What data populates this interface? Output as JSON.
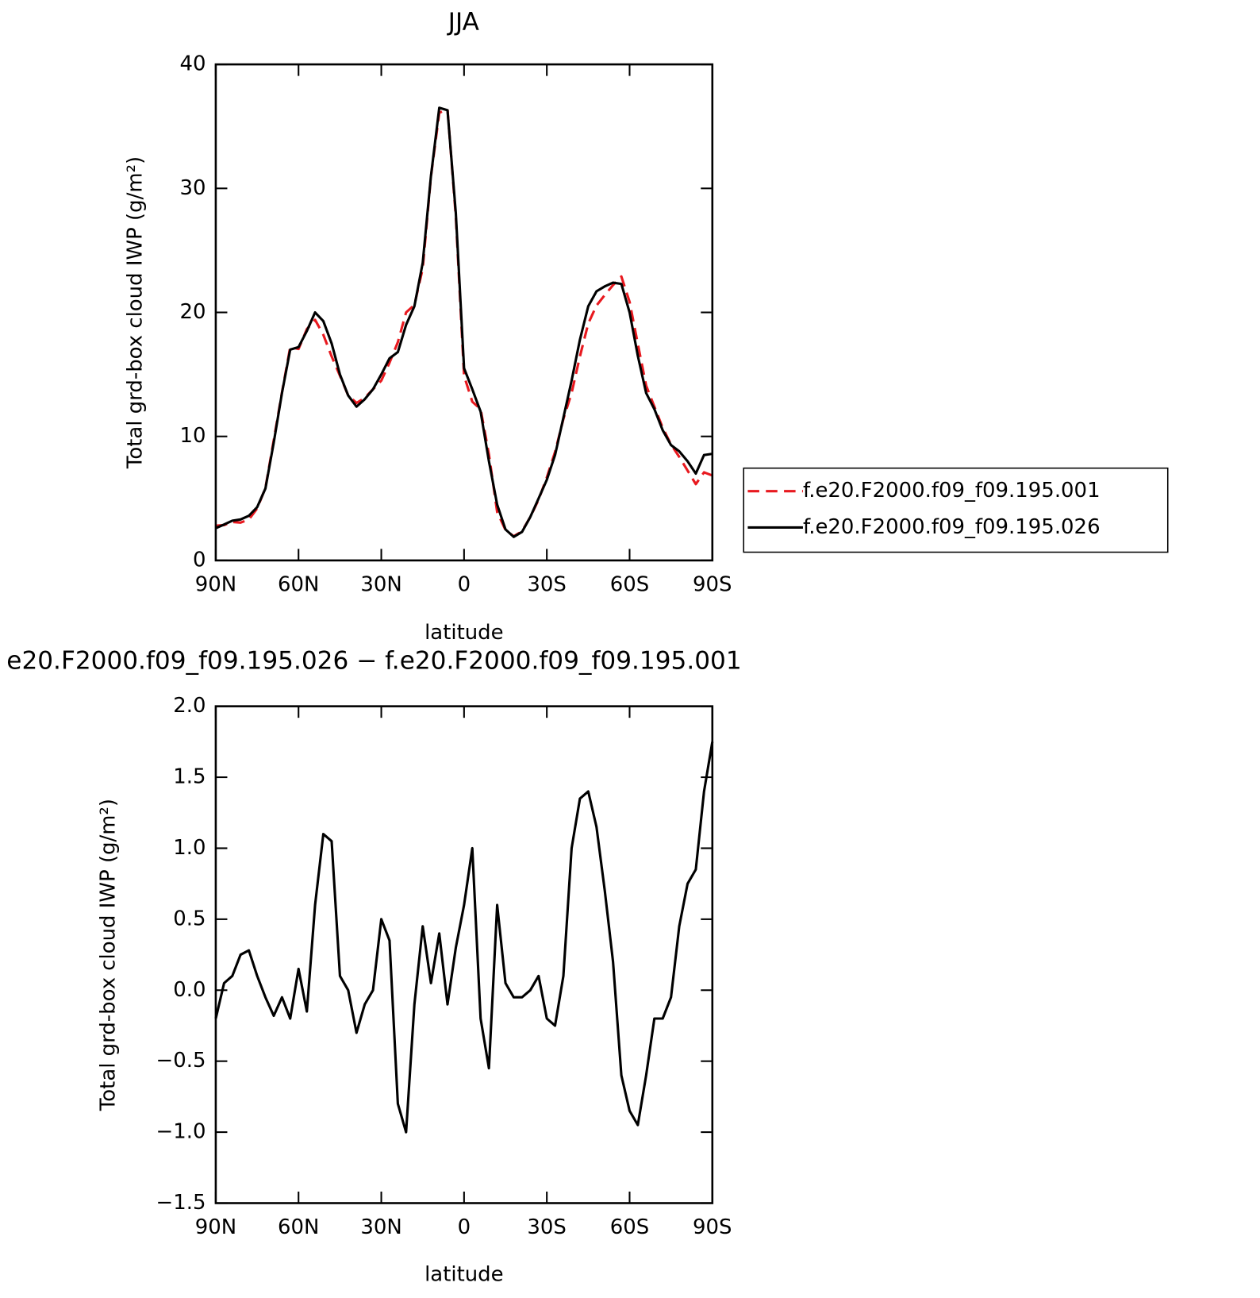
{
  "chart_data": [
    {
      "type": "line",
      "title": "JJA",
      "xlabel": "latitude",
      "ylabel": "Total grd-box cloud IWP (g/m²)",
      "x": [
        90,
        87,
        84,
        81,
        78,
        75,
        72,
        69,
        66,
        63,
        60,
        57,
        54,
        51,
        48,
        45,
        42,
        39,
        36,
        33,
        30,
        27,
        24,
        21,
        18,
        15,
        12,
        9,
        6,
        3,
        0,
        -3,
        -6,
        -9,
        -12,
        -15,
        -18,
        -21,
        -24,
        -27,
        -30,
        -33,
        -36,
        -39,
        -42,
        -45,
        -48,
        -51,
        -54,
        -57,
        -60,
        -63,
        -66,
        -69,
        -72,
        -75,
        -78,
        -81,
        -84,
        -87,
        -90
      ],
      "xlim": [
        90,
        -90
      ],
      "xticks": [
        {
          "value": 90,
          "label": "90N"
        },
        {
          "value": 60,
          "label": "60N"
        },
        {
          "value": 30,
          "label": "30N"
        },
        0,
        {
          "value": -30,
          "label": "30S"
        },
        {
          "value": -60,
          "label": "60S"
        },
        {
          "value": -90,
          "label": "90S"
        }
      ],
      "ylim": [
        0,
        40
      ],
      "yticks": [
        0,
        10,
        20,
        30,
        40
      ],
      "legend": "right",
      "series": [
        {
          "name": "f.e20.F2000.f09_f09.195.001",
          "color": "#e8191f",
          "dashed": true,
          "values": [
            2.8,
            2.85,
            3.1,
            3.05,
            3.3,
            4.2,
            5.85,
            9.7,
            13.55,
            17.2,
            17.05,
            18.65,
            19.4,
            18.2,
            16.45,
            14.9,
            13.3,
            12.7,
            13.1,
            13.8,
            14.5,
            15.95,
            17.6,
            20.0,
            20.6,
            23.55,
            30.95,
            36.1,
            36.4,
            27.7,
            14.9,
            12.8,
            12.2,
            8.55,
            3.9,
            2.45,
            1.95,
            2.35,
            3.5,
            4.9,
            6.7,
            8.75,
            11.4,
            13.5,
            16.45,
            19.1,
            20.55,
            21.4,
            22.2,
            22.9,
            20.85,
            17.45,
            14.1,
            12.4,
            10.7,
            9.35,
            8.35,
            7.25,
            6.15,
            7.1,
            6.85
          ]
        },
        {
          "name": "f.e20.F2000.f09_f09.195.026",
          "color": "#000000",
          "dashed": false,
          "values": [
            2.6,
            2.9,
            3.2,
            3.3,
            3.6,
            4.3,
            5.8,
            9.5,
            13.5,
            17.0,
            17.2,
            18.5,
            20.0,
            19.3,
            17.5,
            15.0,
            13.3,
            12.4,
            13.0,
            13.8,
            15.0,
            16.3,
            16.8,
            19.0,
            20.5,
            24.0,
            31.0,
            36.5,
            36.3,
            28.0,
            15.5,
            13.8,
            12.0,
            8.0,
            4.5,
            2.5,
            1.9,
            2.3,
            3.5,
            5.0,
            6.5,
            8.5,
            11.5,
            14.5,
            17.8,
            20.5,
            21.7,
            22.1,
            22.4,
            22.3,
            20.0,
            16.5,
            13.5,
            12.2,
            10.5,
            9.3,
            8.8,
            8.0,
            7.0,
            8.5,
            8.6
          ]
        }
      ]
    },
    {
      "type": "line",
      "title": "e20.F2000.f09_f09.195.026 − f.e20.F2000.f09_f09.195.001",
      "xlabel": "latitude",
      "ylabel": "Total grd-box cloud IWP (g/m²)",
      "x": [
        90,
        87,
        84,
        81,
        78,
        75,
        72,
        69,
        66,
        63,
        60,
        57,
        54,
        51,
        48,
        45,
        42,
        39,
        36,
        33,
        30,
        27,
        24,
        21,
        18,
        15,
        12,
        9,
        6,
        3,
        0,
        -3,
        -6,
        -9,
        -12,
        -15,
        -18,
        -21,
        -24,
        -27,
        -30,
        -33,
        -36,
        -39,
        -42,
        -45,
        -48,
        -51,
        -54,
        -57,
        -60,
        -63,
        -66,
        -69,
        -72,
        -75,
        -78,
        -81,
        -84,
        -87,
        -90
      ],
      "xlim": [
        90,
        -90
      ],
      "xticks": [
        {
          "value": 90,
          "label": "90N"
        },
        {
          "value": 60,
          "label": "60N"
        },
        {
          "value": 30,
          "label": "30N"
        },
        0,
        {
          "value": -30,
          "label": "30S"
        },
        {
          "value": -60,
          "label": "60S"
        },
        {
          "value": -90,
          "label": "90S"
        }
      ],
      "ylim": [
        -1.5,
        2.0
      ],
      "yticks": [
        {
          "value": -1.5,
          "label": "−1.5"
        },
        {
          "value": -1.0,
          "label": "−1.0"
        },
        {
          "value": -0.5,
          "label": "−0.5"
        },
        {
          "value": 0,
          "label": "0.0"
        },
        0.5,
        {
          "value": 1.0,
          "label": "1.0"
        },
        1.5,
        {
          "value": 2.0,
          "label": "2.0"
        }
      ],
      "color": "#000000",
      "values": [
        -0.2,
        0.05,
        0.1,
        0.25,
        0.28,
        0.1,
        -0.05,
        -0.18,
        -0.05,
        -0.2,
        0.15,
        -0.15,
        0.6,
        1.1,
        1.05,
        0.1,
        0.0,
        -0.3,
        -0.1,
        0.0,
        0.5,
        0.35,
        -0.8,
        -1.0,
        -0.1,
        0.45,
        0.05,
        0.4,
        -0.1,
        0.3,
        0.6,
        1.0,
        -0.2,
        -0.55,
        0.6,
        0.05,
        -0.05,
        -0.05,
        0.0,
        0.1,
        -0.2,
        -0.25,
        0.1,
        1.0,
        1.35,
        1.4,
        1.15,
        0.7,
        0.2,
        -0.6,
        -0.85,
        -0.95,
        -0.6,
        -0.2,
        -0.2,
        -0.05,
        0.45,
        0.75,
        0.85,
        1.4,
        1.75
      ]
    }
  ]
}
